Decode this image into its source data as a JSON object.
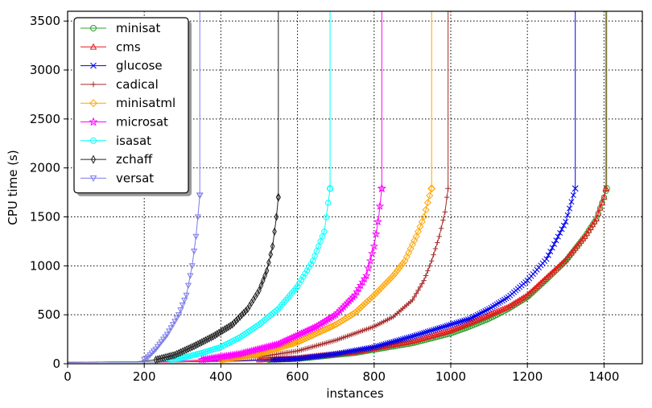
{
  "chart_data": {
    "type": "line",
    "xlabel": "instances",
    "ylabel": "CPU time (s)",
    "xlim": [
      0,
      1500
    ],
    "ylim": [
      0,
      3600
    ],
    "xticks": [
      0,
      200,
      400,
      600,
      800,
      1000,
      1200,
      1400
    ],
    "yticks": [
      0,
      500,
      1000,
      1500,
      2000,
      2500,
      3000,
      3500
    ],
    "grid": true,
    "legend_position": "top-left",
    "series": [
      {
        "name": "minisat",
        "color": "#2ca02c",
        "marker": "circle",
        "points": [
          [
            0,
            15
          ],
          [
            300,
            20
          ],
          [
            450,
            30
          ],
          [
            600,
            50
          ],
          [
            750,
            110
          ],
          [
            900,
            210
          ],
          [
            1000,
            310
          ],
          [
            1050,
            380
          ],
          [
            1100,
            460
          ],
          [
            1150,
            560
          ],
          [
            1200,
            680
          ],
          [
            1250,
            860
          ],
          [
            1300,
            1050
          ],
          [
            1350,
            1300
          ],
          [
            1380,
            1480
          ],
          [
            1400,
            1700
          ],
          [
            1407,
            1790
          ]
        ],
        "timeout_x": 1407
      },
      {
        "name": "cms",
        "color": "#e8191d",
        "marker": "triangle-up",
        "points": [
          [
            0,
            15
          ],
          [
            280,
            20
          ],
          [
            450,
            30
          ],
          [
            600,
            60
          ],
          [
            750,
            120
          ],
          [
            900,
            230
          ],
          [
            1000,
            340
          ],
          [
            1050,
            420
          ],
          [
            1100,
            500
          ],
          [
            1150,
            580
          ],
          [
            1200,
            700
          ],
          [
            1250,
            880
          ],
          [
            1300,
            1060
          ],
          [
            1350,
            1300
          ],
          [
            1380,
            1480
          ],
          [
            1400,
            1700
          ],
          [
            1405,
            1790
          ]
        ],
        "timeout_x": 1405
      },
      {
        "name": "glucose",
        "color": "#0000ee",
        "marker": "x",
        "points": [
          [
            0,
            15
          ],
          [
            300,
            20
          ],
          [
            450,
            28
          ],
          [
            600,
            50
          ],
          [
            700,
            100
          ],
          [
            800,
            170
          ],
          [
            900,
            280
          ],
          [
            1000,
            400
          ],
          [
            1050,
            460
          ],
          [
            1100,
            560
          ],
          [
            1150,
            680
          ],
          [
            1200,
            850
          ],
          [
            1250,
            1070
          ],
          [
            1300,
            1450
          ],
          [
            1325,
            1790
          ]
        ],
        "timeout_x": 1325
      },
      {
        "name": "cadical",
        "color": "#a52a2a",
        "marker": "plus",
        "points": [
          [
            0,
            15
          ],
          [
            300,
            20
          ],
          [
            400,
            35
          ],
          [
            500,
            70
          ],
          [
            600,
            130
          ],
          [
            700,
            240
          ],
          [
            800,
            380
          ],
          [
            850,
            480
          ],
          [
            900,
            650
          ],
          [
            930,
            850
          ],
          [
            950,
            1050
          ],
          [
            970,
            1300
          ],
          [
            985,
            1550
          ],
          [
            993,
            1790
          ]
        ],
        "timeout_x": 993
      },
      {
        "name": "minisatml",
        "color": "#ffa500",
        "marker": "diamond",
        "points": [
          [
            0,
            15
          ],
          [
            280,
            20
          ],
          [
            400,
            40
          ],
          [
            500,
            100
          ],
          [
            600,
            220
          ],
          [
            700,
            400
          ],
          [
            750,
            520
          ],
          [
            800,
            700
          ],
          [
            850,
            900
          ],
          [
            880,
            1050
          ],
          [
            910,
            1300
          ],
          [
            930,
            1500
          ],
          [
            950,
            1790
          ]
        ],
        "timeout_x": 950
      },
      {
        "name": "microsat",
        "color": "#ff00ff",
        "marker": "star",
        "points": [
          [
            0,
            15
          ],
          [
            260,
            20
          ],
          [
            350,
            40
          ],
          [
            450,
            100
          ],
          [
            550,
            200
          ],
          [
            650,
            380
          ],
          [
            700,
            500
          ],
          [
            750,
            700
          ],
          [
            780,
            900
          ],
          [
            800,
            1200
          ],
          [
            812,
            1500
          ],
          [
            820,
            1790
          ]
        ],
        "timeout_x": 820
      },
      {
        "name": "isasat",
        "color": "#00ffff",
        "marker": "circle",
        "points": [
          [
            0,
            15
          ],
          [
            240,
            20
          ],
          [
            300,
            60
          ],
          [
            350,
            110
          ],
          [
            400,
            170
          ],
          [
            450,
            270
          ],
          [
            500,
            400
          ],
          [
            550,
            560
          ],
          [
            600,
            790
          ],
          [
            640,
            1050
          ],
          [
            670,
            1350
          ],
          [
            685,
            1790
          ]
        ],
        "timeout_x": 685
      },
      {
        "name": "zchaff",
        "color": "#222222",
        "marker": "thin-diamond",
        "points": [
          [
            0,
            15
          ],
          [
            180,
            20
          ],
          [
            230,
            40
          ],
          [
            280,
            90
          ],
          [
            330,
            180
          ],
          [
            380,
            280
          ],
          [
            430,
            400
          ],
          [
            470,
            560
          ],
          [
            500,
            750
          ],
          [
            520,
            950
          ],
          [
            535,
            1200
          ],
          [
            545,
            1500
          ],
          [
            550,
            1700
          ]
        ],
        "timeout_x": 550
      },
      {
        "name": "versat",
        "color": "#7b7be8",
        "marker": "triangle-down",
        "points": [
          [
            0,
            15
          ],
          [
            190,
            20
          ],
          [
            210,
            70
          ],
          [
            230,
            150
          ],
          [
            260,
            300
          ],
          [
            290,
            500
          ],
          [
            310,
            700
          ],
          [
            325,
            1000
          ],
          [
            335,
            1300
          ],
          [
            340,
            1500
          ],
          [
            345,
            1720
          ]
        ],
        "timeout_x": 345
      }
    ]
  }
}
